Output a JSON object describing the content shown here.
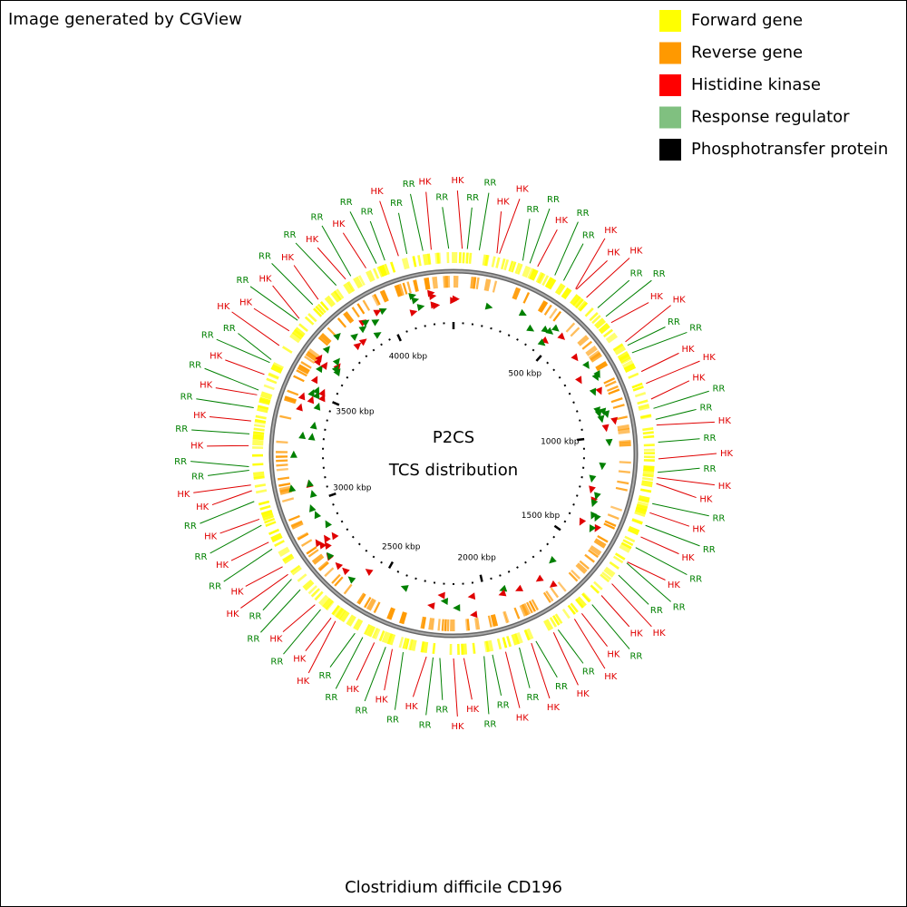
{
  "header": {
    "credit": "Image generated by CGView"
  },
  "legend": [
    {
      "text": "Forward gene",
      "color": "#ffff00"
    },
    {
      "text": "Reverse gene",
      "color": "#ff9900"
    },
    {
      "text": "Histidine kinase",
      "color": "#ff0000"
    },
    {
      "text": "Response regulator",
      "color": "#80c080"
    },
    {
      "text": "Phosphotransfer protein",
      "color": "#000000"
    }
  ],
  "center": {
    "title": "P2CS",
    "subtitle": "TCS distribution"
  },
  "footer": {
    "organism": "Clostridium difficile CD196"
  },
  "ticks": [
    "500 kbp",
    "1000 kbp",
    "1500 kbp",
    "2000 kbp",
    "2500 kbp",
    "3000 kbp",
    "3500 kbp",
    "4000 kbp"
  ],
  "labels": [
    {
      "text": "HK",
      "color": "#e00000"
    },
    {
      "text": "RR",
      "color": "#008000"
    },
    {
      "text": "HK",
      "color": "#e00000"
    },
    {
      "text": "RR",
      "color": "#008000"
    },
    {
      "text": "RR",
      "color": "#008000"
    },
    {
      "text": "HK",
      "color": "#e00000"
    },
    {
      "text": "HK",
      "color": "#e00000"
    },
    {
      "text": "RR",
      "color": "#008000"
    },
    {
      "text": "RR",
      "color": "#008000"
    },
    {
      "text": "HK",
      "color": "#e00000"
    },
    {
      "text": "RR",
      "color": "#008000"
    },
    {
      "text": "RR",
      "color": "#008000"
    },
    {
      "text": "HK",
      "color": "#e00000"
    },
    {
      "text": "HK",
      "color": "#e00000"
    },
    {
      "text": "HK",
      "color": "#e00000"
    },
    {
      "text": "RR",
      "color": "#008000"
    },
    {
      "text": "RR",
      "color": "#008000"
    },
    {
      "text": "HK",
      "color": "#e00000"
    },
    {
      "text": "HK",
      "color": "#e00000"
    },
    {
      "text": "RR",
      "color": "#008000"
    },
    {
      "text": "RR",
      "color": "#008000"
    },
    {
      "text": "HK",
      "color": "#e00000"
    },
    {
      "text": "HK",
      "color": "#e00000"
    },
    {
      "text": "HK",
      "color": "#e00000"
    },
    {
      "text": "RR",
      "color": "#008000"
    },
    {
      "text": "RR",
      "color": "#008000"
    },
    {
      "text": "HK",
      "color": "#e00000"
    },
    {
      "text": "RR",
      "color": "#008000"
    },
    {
      "text": "HK",
      "color": "#e00000"
    },
    {
      "text": "RR",
      "color": "#008000"
    },
    {
      "text": "HK",
      "color": "#e00000"
    },
    {
      "text": "HK",
      "color": "#e00000"
    },
    {
      "text": "RR",
      "color": "#008000"
    },
    {
      "text": "HK",
      "color": "#e00000"
    },
    {
      "text": "RR",
      "color": "#008000"
    },
    {
      "text": "HK",
      "color": "#e00000"
    },
    {
      "text": "RR",
      "color": "#008000"
    },
    {
      "text": "HK",
      "color": "#e00000"
    },
    {
      "text": "RR",
      "color": "#008000"
    },
    {
      "text": "RR",
      "color": "#008000"
    },
    {
      "text": "HK",
      "color": "#e00000"
    },
    {
      "text": "HK",
      "color": "#e00000"
    },
    {
      "text": "RR",
      "color": "#008000"
    },
    {
      "text": "HK",
      "color": "#e00000"
    },
    {
      "text": "HK",
      "color": "#e00000"
    },
    {
      "text": "RR",
      "color": "#008000"
    },
    {
      "text": "HK",
      "color": "#e00000"
    },
    {
      "text": "RR",
      "color": "#008000"
    },
    {
      "text": "HK",
      "color": "#e00000"
    },
    {
      "text": "RR",
      "color": "#008000"
    },
    {
      "text": "HK",
      "color": "#e00000"
    },
    {
      "text": "RR",
      "color": "#008000"
    },
    {
      "text": "RR",
      "color": "#008000"
    },
    {
      "text": "HK",
      "color": "#e00000"
    },
    {
      "text": "HK",
      "color": "#e00000"
    },
    {
      "text": "RR",
      "color": "#008000"
    },
    {
      "text": "RR",
      "color": "#008000"
    },
    {
      "text": "HK",
      "color": "#e00000"
    },
    {
      "text": "RR",
      "color": "#008000"
    },
    {
      "text": "HK",
      "color": "#e00000"
    },
    {
      "text": "RR",
      "color": "#008000"
    },
    {
      "text": "HK",
      "color": "#e00000"
    },
    {
      "text": "RR",
      "color": "#008000"
    },
    {
      "text": "RR",
      "color": "#008000"
    },
    {
      "text": "HK",
      "color": "#e00000"
    },
    {
      "text": "HK",
      "color": "#e00000"
    },
    {
      "text": "RR",
      "color": "#008000"
    },
    {
      "text": "HK",
      "color": "#e00000"
    },
    {
      "text": "RR",
      "color": "#008000"
    },
    {
      "text": "RR",
      "color": "#008000"
    },
    {
      "text": "HK",
      "color": "#e00000"
    },
    {
      "text": "HK",
      "color": "#e00000"
    },
    {
      "text": "RR",
      "color": "#008000"
    },
    {
      "text": "HK",
      "color": "#e00000"
    },
    {
      "text": "RR",
      "color": "#008000"
    },
    {
      "text": "HK",
      "color": "#e00000"
    },
    {
      "text": "RR",
      "color": "#008000"
    },
    {
      "text": "HK",
      "color": "#e00000"
    },
    {
      "text": "HK",
      "color": "#e00000"
    },
    {
      "text": "RR",
      "color": "#008000"
    },
    {
      "text": "RR",
      "color": "#008000"
    },
    {
      "text": "HK",
      "color": "#e00000"
    },
    {
      "text": "RR",
      "color": "#008000"
    },
    {
      "text": "HK",
      "color": "#e00000"
    },
    {
      "text": "RR",
      "color": "#008000"
    },
    {
      "text": "HK",
      "color": "#e00000"
    },
    {
      "text": "RR",
      "color": "#008000"
    },
    {
      "text": "HK",
      "color": "#e00000"
    },
    {
      "text": "RR",
      "color": "#008000"
    },
    {
      "text": "RR",
      "color": "#008000"
    },
    {
      "text": "HK",
      "color": "#e00000"
    },
    {
      "text": "HK",
      "color": "#e00000"
    },
    {
      "text": "RR",
      "color": "#008000"
    },
    {
      "text": "HK",
      "color": "#e00000"
    },
    {
      "text": "RR",
      "color": "#008000"
    },
    {
      "text": "HK",
      "color": "#e00000"
    },
    {
      "text": "RR",
      "color": "#008000"
    },
    {
      "text": "HK",
      "color": "#e00000"
    },
    {
      "text": "RR",
      "color": "#008000"
    },
    {
      "text": "HK",
      "color": "#e00000"
    },
    {
      "text": "RR",
      "color": "#008000"
    },
    {
      "text": "RR",
      "color": "#008000"
    },
    {
      "text": "HK",
      "color": "#e00000"
    },
    {
      "text": "RR",
      "color": "#008000"
    },
    {
      "text": "RR",
      "color": "#008000"
    }
  ]
}
